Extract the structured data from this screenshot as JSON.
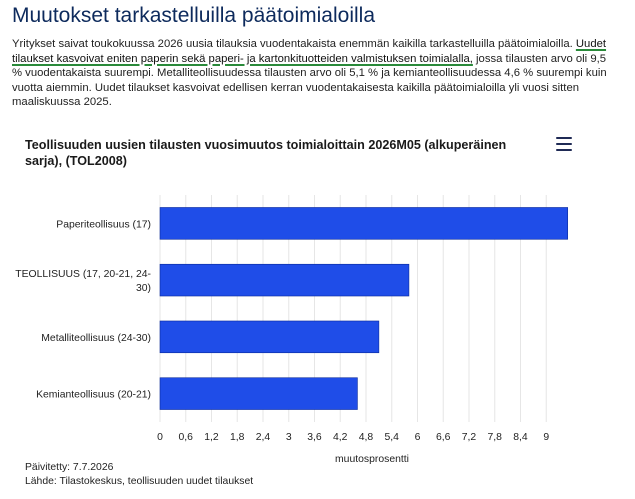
{
  "page": {
    "heading": "Muutokset tarkastelluilla päätoimialoilla",
    "intro_before": "Yritykset saivat toukokuussa 2026 uusia tilauksia vuodentakaista enemmän kaikilla tarkastelluilla päätoimialoilla. ",
    "intro_highlight": "Uudet tilaukset kasvoivat eniten paperin sekä paperi- ja kartonkituotteiden valmistuksen toimialalla,",
    "intro_after": " jossa tilausten arvo oli 9,5 % vuodentakaista suurempi. Metalliteollisuudessa tilausten arvo oli 5,1 % ja kemianteollisuudessa 4,6 % suurempi kuin vuotta aiemmin. Uudet tilaukset kasvoivat edellisen kerran vuodentakaisesta kaikilla päätoimialoilla yli vuosi sitten maaliskuussa 2025."
  },
  "chart_data": {
    "type": "bar",
    "orientation": "horizontal",
    "title": "Teollisuuden uusien tilausten vuosimuutos toimialoittain 2026M05 (alkuperäinen sarja), (TOL2008)",
    "categories": [
      "Paperiteollisuus (17)",
      "TEOLLISUUS (17, 20-21, 24-30)",
      "Metalliteollisuus (24-30)",
      "Kemianteollisuus (20-21)"
    ],
    "category_label_lines": [
      [
        "Paperiteollisuus (17)"
      ],
      [
        "TEOLLISUUS (17, 20-21, 24-",
        "30)"
      ],
      [
        "Metalliteollisuus (24-30)"
      ],
      [
        "Kemianteollisuus (20-21)"
      ]
    ],
    "values": [
      9.5,
      5.8,
      5.1,
      4.6
    ],
    "xlabel": "muutosprosentti",
    "ylabel": "",
    "xlim": [
      0,
      9.6
    ],
    "x_ticks": [
      0,
      0.6,
      1.2,
      1.8,
      2.4,
      3,
      3.6,
      4.2,
      4.8,
      5.4,
      6,
      6.6,
      7.2,
      7.8,
      8.4,
      9
    ],
    "x_tick_labels": [
      "0",
      "0,6",
      "1,2",
      "1,8",
      "2,4",
      "3",
      "3,6",
      "4,2",
      "4,8",
      "5,4",
      "6",
      "6,6",
      "7,2",
      "7,8",
      "8,4",
      "9"
    ],
    "bar_color": "#1f4de8",
    "grid": true
  },
  "footer": {
    "updated": "Päivitetty: 7.7.2026",
    "source": "Lähde: Tilastokeskus, teollisuuden uudet tilaukset"
  }
}
